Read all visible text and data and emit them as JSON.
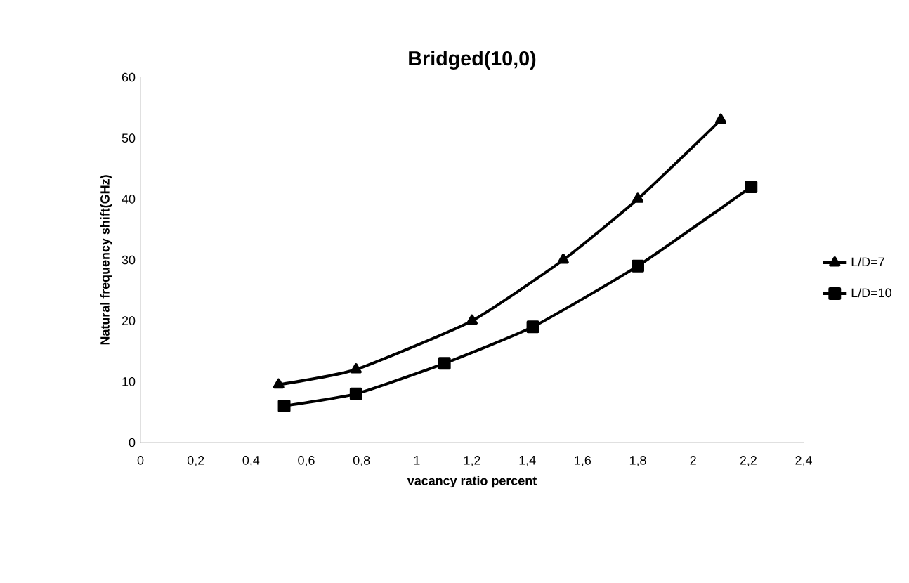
{
  "chart_data": {
    "type": "line",
    "title": "Bridged(10,0)",
    "xlabel": "vacancy ratio percent",
    "ylabel": "Natural frequency shift(GHz)",
    "series": [
      {
        "name": "L/D=7",
        "color": "#000000",
        "marker": "triangle",
        "x": [
          0.5,
          0.78,
          1.2,
          1.53,
          1.8,
          2.1
        ],
        "values": [
          9.5,
          12,
          20,
          30,
          40,
          53
        ]
      },
      {
        "name": "L/D=10",
        "color": "#000000",
        "marker": "square",
        "x": [
          0.52,
          0.78,
          1.1,
          1.42,
          1.8,
          2.21
        ],
        "values": [
          6,
          8,
          13,
          19,
          29,
          42
        ]
      }
    ],
    "xlim": [
      0,
      2.4
    ],
    "xticks": [
      0,
      {
        "value": 0.2,
        "label": "0,2"
      },
      {
        "value": 0.4,
        "label": "0,4"
      },
      {
        "value": 0.6,
        "label": "0,6"
      },
      {
        "value": 0.8,
        "label": "0,8"
      },
      1,
      {
        "value": 1.2,
        "label": "1,2"
      },
      {
        "value": 1.4,
        "label": "1,4"
      },
      {
        "value": 1.6,
        "label": "1,6"
      },
      {
        "value": 1.8,
        "label": "1,8"
      },
      2,
      {
        "value": 2.2,
        "label": "2,2"
      },
      {
        "value": 2.4,
        "label": "2,4"
      }
    ],
    "ylim": [
      0,
      60
    ],
    "yticks": [
      0,
      10,
      20,
      30,
      40,
      50,
      60
    ],
    "legend": "right",
    "grid": false,
    "line_style": "solid"
  }
}
